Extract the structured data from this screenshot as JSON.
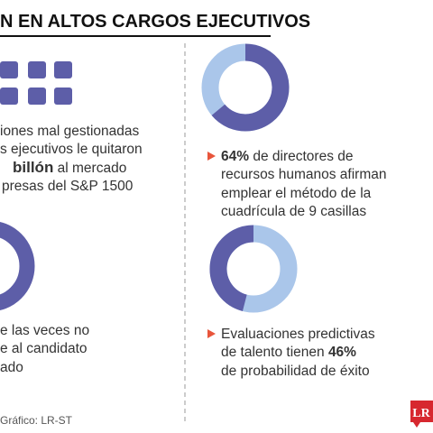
{
  "header": {
    "title": "N EN ALTOS CARGOS EJECUTIVOS"
  },
  "left_items": [
    {
      "lines": [
        "iones mal gestionadas",
        "s ejecutivos le quitaron",
        "billón",
        " al mercado",
        "presas del S&P 1500"
      ]
    },
    {
      "lines": [
        "e las veces no",
        "e al candidato",
        "ado"
      ]
    }
  ],
  "right_items": [
    {
      "value": 64,
      "value_label": "64%",
      "lines": [
        " de directores de",
        "recursos humanos afirman",
        "emplear el método de la",
        "cuadrícula de 9 casillas"
      ],
      "direction": "clockwise"
    },
    {
      "lines": [
        "Evaluaciones predictivas",
        "de talento tienen ",
        "de probabilidad de éxito"
      ],
      "value": 46,
      "value_label": "46%",
      "direction": "counterclockwise"
    }
  ],
  "colors": {
    "primary": "#5d5ea8",
    "secondary": "#aac6ea"
  },
  "footer": {
    "source": "Gráfico: LR-ST",
    "logo": "LR"
  }
}
